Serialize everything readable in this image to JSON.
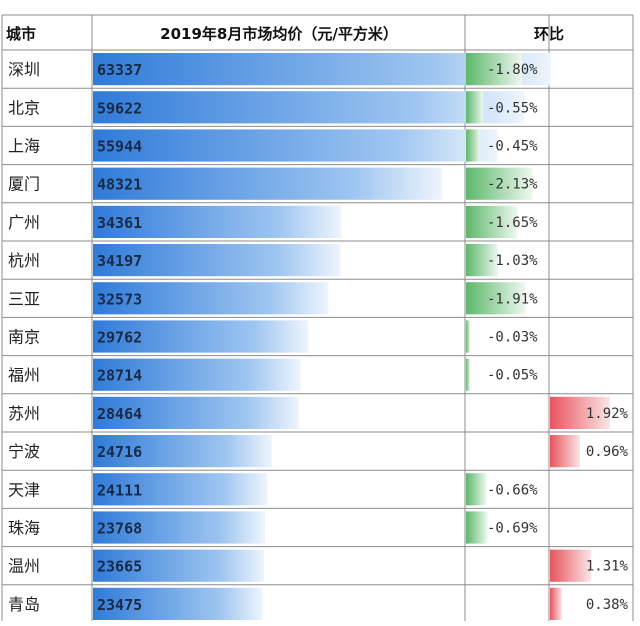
{
  "table": {
    "headers": {
      "city": "城市",
      "price": "2019年8月市场均价（元/平方米）",
      "change": "环比"
    }
  },
  "chart_data": {
    "type": "table",
    "title": "2019年8月市场均价（元/平方米）",
    "columns": [
      "城市",
      "2019年8月市场均价（元/平方米）",
      "环比"
    ],
    "rows": [
      {
        "city": "深圳",
        "price": 63337,
        "change": -1.8,
        "change_label": "-1.80%"
      },
      {
        "city": "北京",
        "price": 59622,
        "change": -0.55,
        "change_label": "-0.55%"
      },
      {
        "city": "上海",
        "price": 55944,
        "change": -0.45,
        "change_label": "-0.45%"
      },
      {
        "city": "厦门",
        "price": 48321,
        "change": -2.13,
        "change_label": "-2.13%"
      },
      {
        "city": "广州",
        "price": 34361,
        "change": -1.65,
        "change_label": "-1.65%"
      },
      {
        "city": "杭州",
        "price": 34197,
        "change": -1.03,
        "change_label": "-1.03%"
      },
      {
        "city": "三亚",
        "price": 32573,
        "change": -1.91,
        "change_label": "-1.91%"
      },
      {
        "city": "南京",
        "price": 29762,
        "change": -0.03,
        "change_label": "-0.03%"
      },
      {
        "city": "福州",
        "price": 28714,
        "change": -0.05,
        "change_label": "-0.05%"
      },
      {
        "city": "苏州",
        "price": 28464,
        "change": 1.92,
        "change_label": "1.92%"
      },
      {
        "city": "宁波",
        "price": 24716,
        "change": 0.96,
        "change_label": "0.96%"
      },
      {
        "city": "天津",
        "price": 24111,
        "change": -0.66,
        "change_label": "-0.66%"
      },
      {
        "city": "珠海",
        "price": 23768,
        "change": -0.69,
        "change_label": "-0.69%"
      },
      {
        "city": "温州",
        "price": 23665,
        "change": 1.31,
        "change_label": "1.31%"
      },
      {
        "city": "青岛",
        "price": 23475,
        "change": 0.38,
        "change_label": "0.38%"
      }
    ],
    "bar_colors": {
      "price": "#2f7bd9",
      "decrease": "#4caf50",
      "increase": "#e8545d"
    }
  }
}
